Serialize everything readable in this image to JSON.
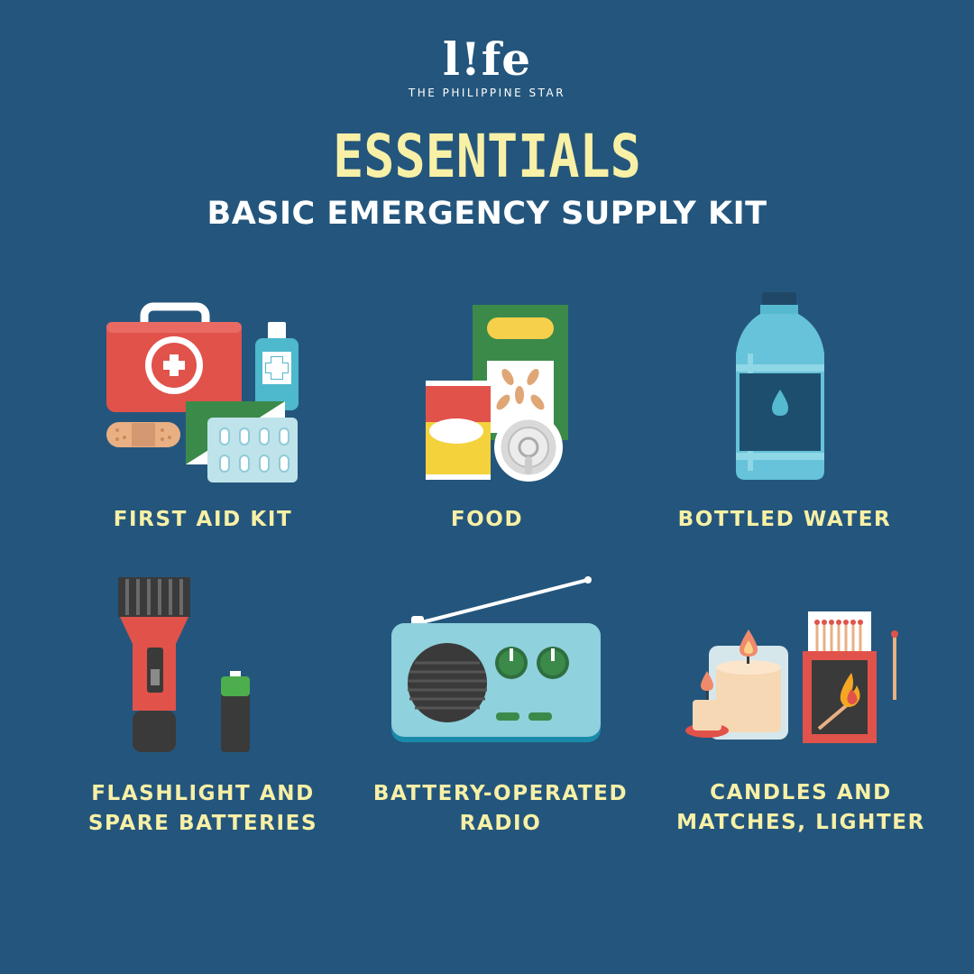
{
  "brand": {
    "logo": "l!fe",
    "tagline": "THE PHILIPPINE STAR"
  },
  "header": {
    "title": "ESSENTIALS",
    "subtitle": "BASIC EMERGENCY SUPPLY KIT"
  },
  "colors": {
    "background": "#24567d",
    "title": "#f7f0a6",
    "label": "#f7f0a6",
    "subtitle": "#ffffff"
  },
  "items": [
    {
      "label_line1": "FIRST AID KIT",
      "icon": "first-aid-kit-icon"
    },
    {
      "label_line1": "FOOD",
      "icon": "food-icon"
    },
    {
      "label_line1": "BOTTLED WATER",
      "icon": "water-bottle-icon"
    },
    {
      "label_line1": "FLASHLIGHT AND",
      "label_line2": "SPARE BATTERIES",
      "icon": "flashlight-icon"
    },
    {
      "label_line1": "BATTERY-OPERATED",
      "label_line2": "RADIO",
      "icon": "radio-icon"
    },
    {
      "label_line1": "CANDLES AND",
      "label_line2": "MATCHES, LIGHTER",
      "icon": "candles-matches-icon"
    }
  ]
}
